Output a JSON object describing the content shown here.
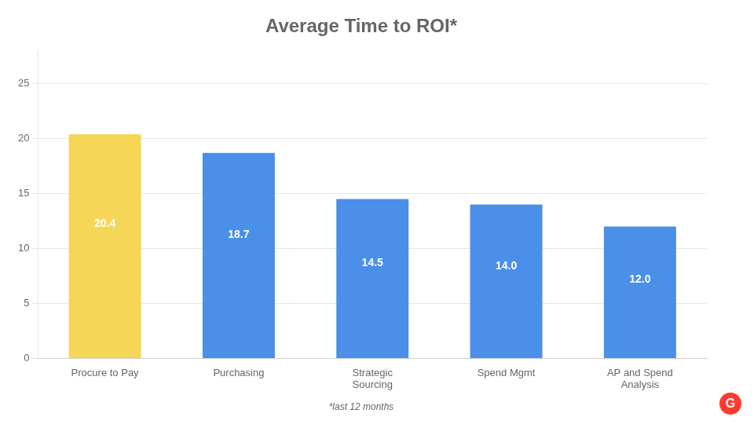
{
  "chart_data": {
    "type": "bar",
    "title": "Average Time to ROI*",
    "footnote": "*last 12 months",
    "annotations": [
      {
        "text": "G",
        "color": "#FF3A2F"
      }
    ],
    "categories": [
      "Procure to Pay",
      "Purchasing",
      "Strategic\nSourcing",
      "Spend Mgmt",
      "AP and Spend\nAnalysis"
    ],
    "values": [
      20.4,
      18.7,
      14.5,
      14.0,
      12.0
    ],
    "value_labels": [
      "20.4",
      "18.7",
      "14.5",
      "14.0",
      "12.0"
    ],
    "colors": [
      "#F5D657",
      "#4A8FE8",
      "#4A8FE8",
      "#4A8FE8",
      "#4A8FE8"
    ],
    "ylim": [
      0,
      28
    ],
    "yticks": [
      0,
      5,
      10,
      15,
      20,
      25
    ],
    "grid": true,
    "data_labels": true
  }
}
